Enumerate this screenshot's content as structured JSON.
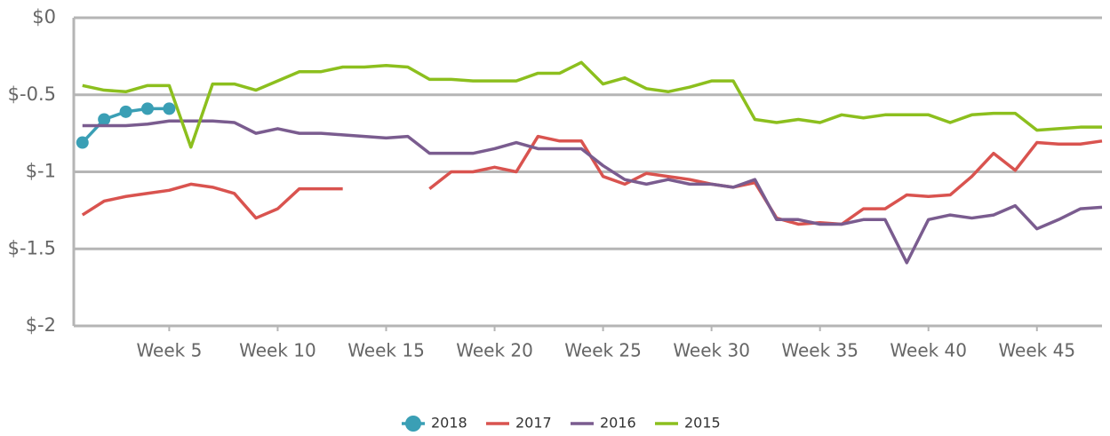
{
  "chart_data": {
    "type": "line",
    "x": [
      1,
      2,
      3,
      4,
      5,
      6,
      7,
      8,
      9,
      10,
      11,
      12,
      13,
      14,
      15,
      16,
      17,
      18,
      19,
      20,
      21,
      22,
      23,
      24,
      25,
      26,
      27,
      28,
      29,
      30,
      31,
      32,
      33,
      34,
      35,
      36,
      37,
      38,
      39,
      40,
      41,
      42,
      43,
      44,
      45,
      46,
      47,
      48
    ],
    "xlim": [
      0.6,
      48
    ],
    "xticks": [
      {
        "value": 5,
        "label": "Week 5"
      },
      {
        "value": 10,
        "label": "Week 10"
      },
      {
        "value": 15,
        "label": "Week 15"
      },
      {
        "value": 20,
        "label": "Week 20"
      },
      {
        "value": 25,
        "label": "Week 25"
      },
      {
        "value": 30,
        "label": "Week 30"
      },
      {
        "value": 35,
        "label": "Week 35"
      },
      {
        "value": 40,
        "label": "Week 40"
      },
      {
        "value": 45,
        "label": "Week 45"
      }
    ],
    "ylim": [
      -2,
      0
    ],
    "yticks": [
      {
        "value": 0,
        "label": "$0"
      },
      {
        "value": -0.5,
        "label": "$-0.5"
      },
      {
        "value": -1,
        "label": "$-1"
      },
      {
        "value": -1.5,
        "label": "$-1.5"
      },
      {
        "value": -2,
        "label": "$-2"
      }
    ],
    "grid": true,
    "legend": "bottom",
    "series": [
      {
        "name": "2018",
        "color": "#3a9fb5",
        "markers": true,
        "values": [
          -0.81,
          -0.66,
          -0.61,
          -0.59,
          -0.59,
          null,
          null,
          null,
          null,
          null,
          null,
          null,
          null,
          null,
          null,
          null,
          null,
          null,
          null,
          null,
          null,
          null,
          null,
          null,
          null,
          null,
          null,
          null,
          null,
          null,
          null,
          null,
          null,
          null,
          null,
          null,
          null,
          null,
          null,
          null,
          null,
          null,
          null,
          null,
          null,
          null,
          null,
          null
        ]
      },
      {
        "name": "2017",
        "color": "#d9534f",
        "values": [
          -1.28,
          -1.19,
          -1.16,
          -1.14,
          -1.12,
          -1.08,
          -1.1,
          -1.14,
          -1.3,
          -1.24,
          -1.11,
          -1.11,
          -1.11,
          null,
          null,
          null,
          -1.11,
          -1.0,
          -1.0,
          -0.97,
          -1.0,
          -0.77,
          -0.8,
          -0.8,
          -1.03,
          -1.08,
          -1.01,
          -1.03,
          -1.05,
          -1.08,
          -1.1,
          -1.07,
          -1.3,
          -1.34,
          -1.33,
          -1.34,
          -1.24,
          -1.24,
          -1.15,
          -1.16,
          -1.15,
          -1.03,
          -0.88,
          -0.99,
          -0.81,
          -0.82,
          -0.82,
          -0.8
        ]
      },
      {
        "name": "2016",
        "color": "#7a5c8f",
        "values": [
          -0.7,
          -0.7,
          -0.7,
          -0.69,
          -0.67,
          -0.67,
          -0.67,
          -0.68,
          -0.75,
          -0.72,
          -0.75,
          -0.75,
          -0.76,
          -0.77,
          -0.78,
          -0.77,
          -0.88,
          -0.88,
          -0.88,
          -0.85,
          -0.81,
          -0.85,
          -0.85,
          -0.85,
          -0.96,
          -1.05,
          -1.08,
          -1.05,
          -1.08,
          -1.08,
          -1.1,
          -1.05,
          -1.31,
          -1.31,
          -1.34,
          -1.34,
          -1.31,
          -1.31,
          -1.59,
          -1.31,
          -1.28,
          -1.3,
          -1.28,
          -1.22,
          -1.37,
          -1.31,
          -1.24,
          -1.23
        ]
      },
      {
        "name": "2015",
        "color": "#8cbf1e",
        "values": [
          -0.44,
          -0.47,
          -0.48,
          -0.44,
          -0.44,
          -0.84,
          -0.43,
          -0.43,
          -0.47,
          -0.41,
          -0.35,
          -0.35,
          -0.32,
          -0.32,
          -0.31,
          -0.32,
          -0.4,
          -0.4,
          -0.41,
          -0.41,
          -0.41,
          -0.36,
          -0.36,
          -0.29,
          -0.43,
          -0.39,
          -0.46,
          -0.48,
          -0.45,
          -0.41,
          -0.41,
          -0.66,
          -0.68,
          -0.66,
          -0.68,
          -0.63,
          -0.65,
          -0.63,
          -0.63,
          -0.63,
          -0.68,
          -0.63,
          -0.62,
          -0.62,
          -0.73,
          -0.72,
          -0.71,
          -0.71
        ]
      }
    ]
  }
}
